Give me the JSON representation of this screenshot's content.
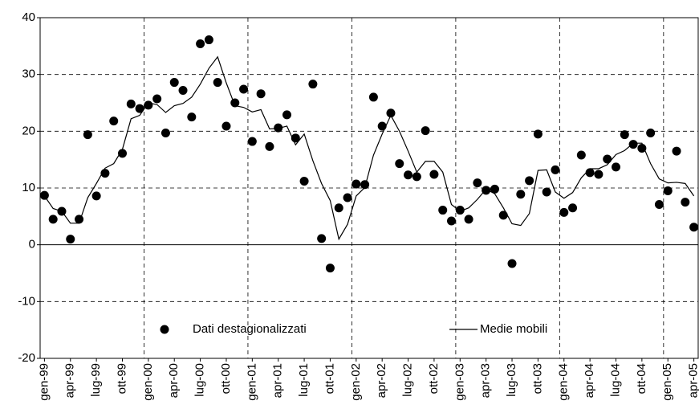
{
  "chart_data": {
    "type": "line",
    "categories": [
      "gen-99",
      null,
      null,
      "apr-99",
      null,
      null,
      "lug-99",
      null,
      null,
      "ott-99",
      null,
      null,
      "gen-00",
      null,
      null,
      "apr-00",
      null,
      null,
      "lug-00",
      null,
      null,
      "ott-00",
      null,
      null,
      "gen-01",
      null,
      null,
      "apr-01",
      null,
      null,
      "lug-01",
      null,
      null,
      "ott-01",
      null,
      null,
      "gen-02",
      null,
      null,
      "apr-02",
      null,
      null,
      "lug-02",
      null,
      null,
      "ott-02",
      null,
      null,
      "gen-03",
      null,
      null,
      "apr-03",
      null,
      null,
      "lug-03",
      null,
      null,
      "ott-03",
      null,
      null,
      "gen-04",
      null,
      null,
      "apr-04",
      null,
      null,
      "lug-04",
      null,
      null,
      "ott-04",
      null,
      null,
      "gen-05",
      null,
      null,
      "apr-05"
    ],
    "series": [
      {
        "name": "Dati destagionalizzati",
        "color": "#000000",
        "mode": "markers",
        "values": [
          8.7,
          4.5,
          5.9,
          1.0,
          4.5,
          19.4,
          8.6,
          12.6,
          21.8,
          16.1,
          24.8,
          24.0,
          24.6,
          25.7,
          19.7,
          28.6,
          27.2,
          22.5,
          35.4,
          36.1,
          28.6,
          20.9,
          25.0,
          27.4,
          18.2,
          26.6,
          17.3,
          20.6,
          22.9,
          18.8,
          11.2,
          28.3,
          1.1,
          -4.1,
          6.5,
          8.3,
          10.7,
          10.6,
          26.0,
          20.9,
          23.2,
          14.3,
          12.3,
          12.0,
          20.1,
          12.4,
          6.1,
          4.2,
          6.1,
          4.5,
          10.9,
          9.6,
          9.8,
          5.2,
          -3.3,
          8.9,
          11.3,
          19.5,
          9.3,
          13.2,
          5.7,
          6.5,
          15.8,
          12.7,
          12.4,
          15.1,
          13.7,
          19.4,
          17.7,
          17.0,
          19.7,
          7.1,
          9.5,
          16.5,
          7.5,
          3.1
        ]
      },
      {
        "name": "Medie mobili",
        "color": "#000000",
        "mode": "line",
        "values": [
          8.6,
          6.4,
          5.9,
          3.8,
          3.8,
          8.3,
          10.8,
          13.5,
          14.3,
          16.8,
          22.2,
          22.8,
          25.0,
          24.7,
          23.3,
          24.5,
          24.9,
          26.0,
          28.3,
          31.1,
          33.1,
          28.5,
          24.5,
          24.2,
          23.4,
          23.8,
          20.4,
          20.5,
          20.9,
          17.6,
          19.5,
          14.8,
          10.8,
          7.8,
          1.0,
          3.6,
          8.6,
          10.1,
          15.8,
          19.5,
          22.8,
          20.0,
          16.5,
          12.8,
          14.7,
          14.7,
          12.8,
          7.1,
          5.9,
          6.5,
          8.0,
          9.8,
          9.0,
          6.5,
          3.7,
          3.4,
          5.5,
          13.1,
          13.2,
          9.3,
          8.2,
          9.2,
          11.8,
          13.4,
          13.4,
          14.1,
          15.9,
          16.6,
          17.9,
          17.9,
          14.3,
          11.6,
          10.9,
          11.0,
          10.8,
          8.6
        ]
      }
    ],
    "ylim": [
      -20,
      40
    ],
    "yticks": [
      -20,
      -10,
      0,
      10,
      20,
      30,
      40
    ],
    "grid": true,
    "legend": "lower center"
  }
}
